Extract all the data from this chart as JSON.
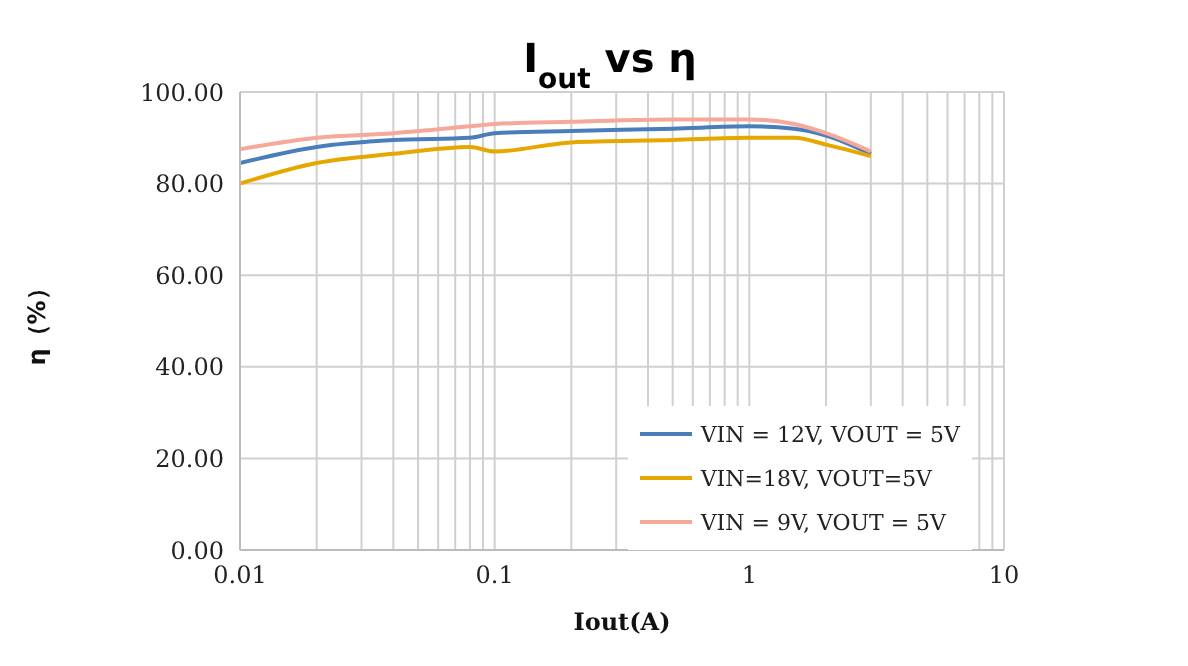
{
  "chart_data": {
    "type": "line",
    "title": "I$_{out}$ vs η",
    "xlabel": "Iout(A)",
    "ylabel": "η（%）",
    "xlim": [
      0.01,
      10
    ],
    "xticks": [
      0.01,
      {
        "value": 0.02,
        "label": null
      },
      {
        "value": 0.03,
        "label": null
      },
      {
        "value": 0.04,
        "label": null
      },
      {
        "value": 0.05,
        "label": null
      },
      {
        "value": 0.06,
        "label": null
      },
      {
        "value": 0.07,
        "label": null
      },
      {
        "value": 0.08,
        "label": null
      },
      {
        "value": 0.09,
        "label": null
      },
      0.1,
      {
        "value": 0.2,
        "label": null
      },
      {
        "value": 0.3,
        "label": null
      },
      {
        "value": 0.4,
        "label": null
      },
      {
        "value": 0.5,
        "label": null
      },
      {
        "value": 0.6,
        "label": null
      },
      {
        "value": 0.7,
        "label": null
      },
      {
        "value": 0.8,
        "label": null
      },
      {
        "value": 0.9,
        "label": null
      },
      {
        "value": 1,
        "label": "1"
      },
      {
        "value": 2,
        "label": null
      },
      {
        "value": 3,
        "label": null
      },
      {
        "value": 4,
        "label": null
      },
      {
        "value": 5,
        "label": null
      },
      {
        "value": 6,
        "label": null
      },
      {
        "value": 7,
        "label": null
      },
      {
        "value": 8,
        "label": null
      },
      {
        "value": 9,
        "label": null
      },
      {
        "value": 10,
        "label": "10"
      }
    ],
    "ylim": [
      0,
      100
    ],
    "yticks": [
      {
        "value": 0,
        "label": "0.00"
      },
      {
        "value": 20,
        "label": "20.00"
      },
      {
        "value": 40,
        "label": "40.00"
      },
      {
        "value": 60,
        "label": "60.00"
      },
      {
        "value": 80,
        "label": "80.00"
      },
      {
        "value": 100,
        "label": "100.00"
      }
    ],
    "log": "x",
    "grid": true,
    "legend": "bottom right",
    "marker": "none",
    "line_style": "solid",
    "x": [
      0.01,
      0.02,
      0.04,
      0.08,
      0.1,
      0.2,
      0.5,
      1,
      1.5,
      2,
      3
    ],
    "series": [
      {
        "name": "VIN = 12V, VOUT = 5V",
        "color": "#4a7ebb",
        "values": [
          84.5,
          88,
          89.5,
          90,
          91,
          91.5,
          92,
          92.5,
          92,
          90.5,
          86.5
        ]
      },
      {
        "name": "VIN=18V, VOUT=5V",
        "color": "#e6a800",
        "values": [
          80,
          84.5,
          86.5,
          88,
          87,
          89,
          89.5,
          90,
          90,
          88.5,
          86
        ]
      },
      {
        "name": "VIN = 9V, VOUT = 5V",
        "color": "#f4a99a",
        "values": [
          87.5,
          90,
          91,
          92.5,
          93,
          93.5,
          94,
          94,
          93,
          91,
          87
        ]
      }
    ]
  }
}
